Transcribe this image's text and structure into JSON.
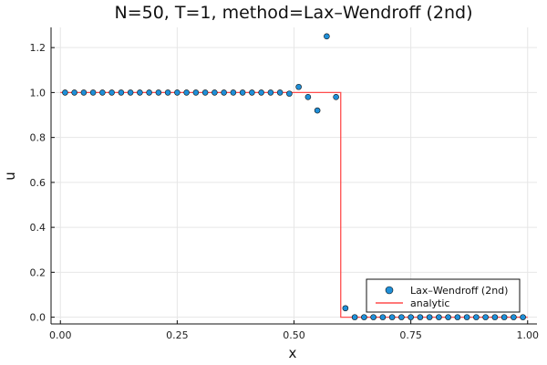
{
  "chart_data": {
    "type": "scatter",
    "title": "N=50, T=1, method=Lax–Wendroff (2nd)",
    "xlabel": "x",
    "ylabel": "u",
    "xlim": [
      -0.02,
      1.02
    ],
    "ylim": [
      -0.03,
      1.29
    ],
    "xticks": [
      0.0,
      0.25,
      0.5,
      0.75,
      1.0
    ],
    "xtick_labels": [
      "0.00",
      "0.25",
      "0.50",
      "0.75",
      "1.00"
    ],
    "yticks": [
      0.0,
      0.2,
      0.4,
      0.6,
      0.8,
      1.0,
      1.2
    ],
    "ytick_labels": [
      "0.0",
      "0.2",
      "0.4",
      "0.6",
      "0.8",
      "1.0",
      "1.2"
    ],
    "grid": true,
    "legend_position": "bottom-right",
    "series": [
      {
        "name": "Lax–Wendroff (2nd)",
        "kind": "scatter",
        "color": "#1f8fd8",
        "x": [
          0.01,
          0.03,
          0.05,
          0.07,
          0.09,
          0.11,
          0.13,
          0.15,
          0.17,
          0.19,
          0.21,
          0.23,
          0.25,
          0.27,
          0.29,
          0.31,
          0.33,
          0.35,
          0.37,
          0.39,
          0.41,
          0.43,
          0.45,
          0.47,
          0.49,
          0.51,
          0.53,
          0.55,
          0.57,
          0.59,
          0.61,
          0.63,
          0.65,
          0.67,
          0.69,
          0.71,
          0.73,
          0.75,
          0.77,
          0.79,
          0.81,
          0.83,
          0.85,
          0.87,
          0.89,
          0.91,
          0.93,
          0.95,
          0.97,
          0.99
        ],
        "y": [
          1.0,
          1.0,
          1.0,
          1.0,
          1.0,
          1.0,
          1.0,
          1.0,
          1.0,
          1.0,
          1.0,
          1.0,
          1.0,
          1.0,
          1.0,
          1.0,
          1.0,
          1.0,
          1.0,
          1.0,
          1.0,
          1.0,
          1.0,
          1.0,
          0.995,
          1.025,
          0.98,
          0.92,
          1.25,
          0.98,
          0.04,
          0.0,
          0.0,
          0.0,
          0.0,
          0.0,
          0.0,
          0.0,
          0.0,
          0.0,
          0.0,
          0.0,
          0.0,
          0.0,
          0.0,
          0.0,
          0.0,
          0.0,
          0.0,
          0.0
        ]
      },
      {
        "name": "analytic",
        "kind": "line",
        "color": "#ff4d4d",
        "x": [
          0.0,
          0.6,
          0.6,
          1.0
        ],
        "y": [
          1.0,
          1.0,
          0.0,
          0.0
        ]
      }
    ]
  }
}
